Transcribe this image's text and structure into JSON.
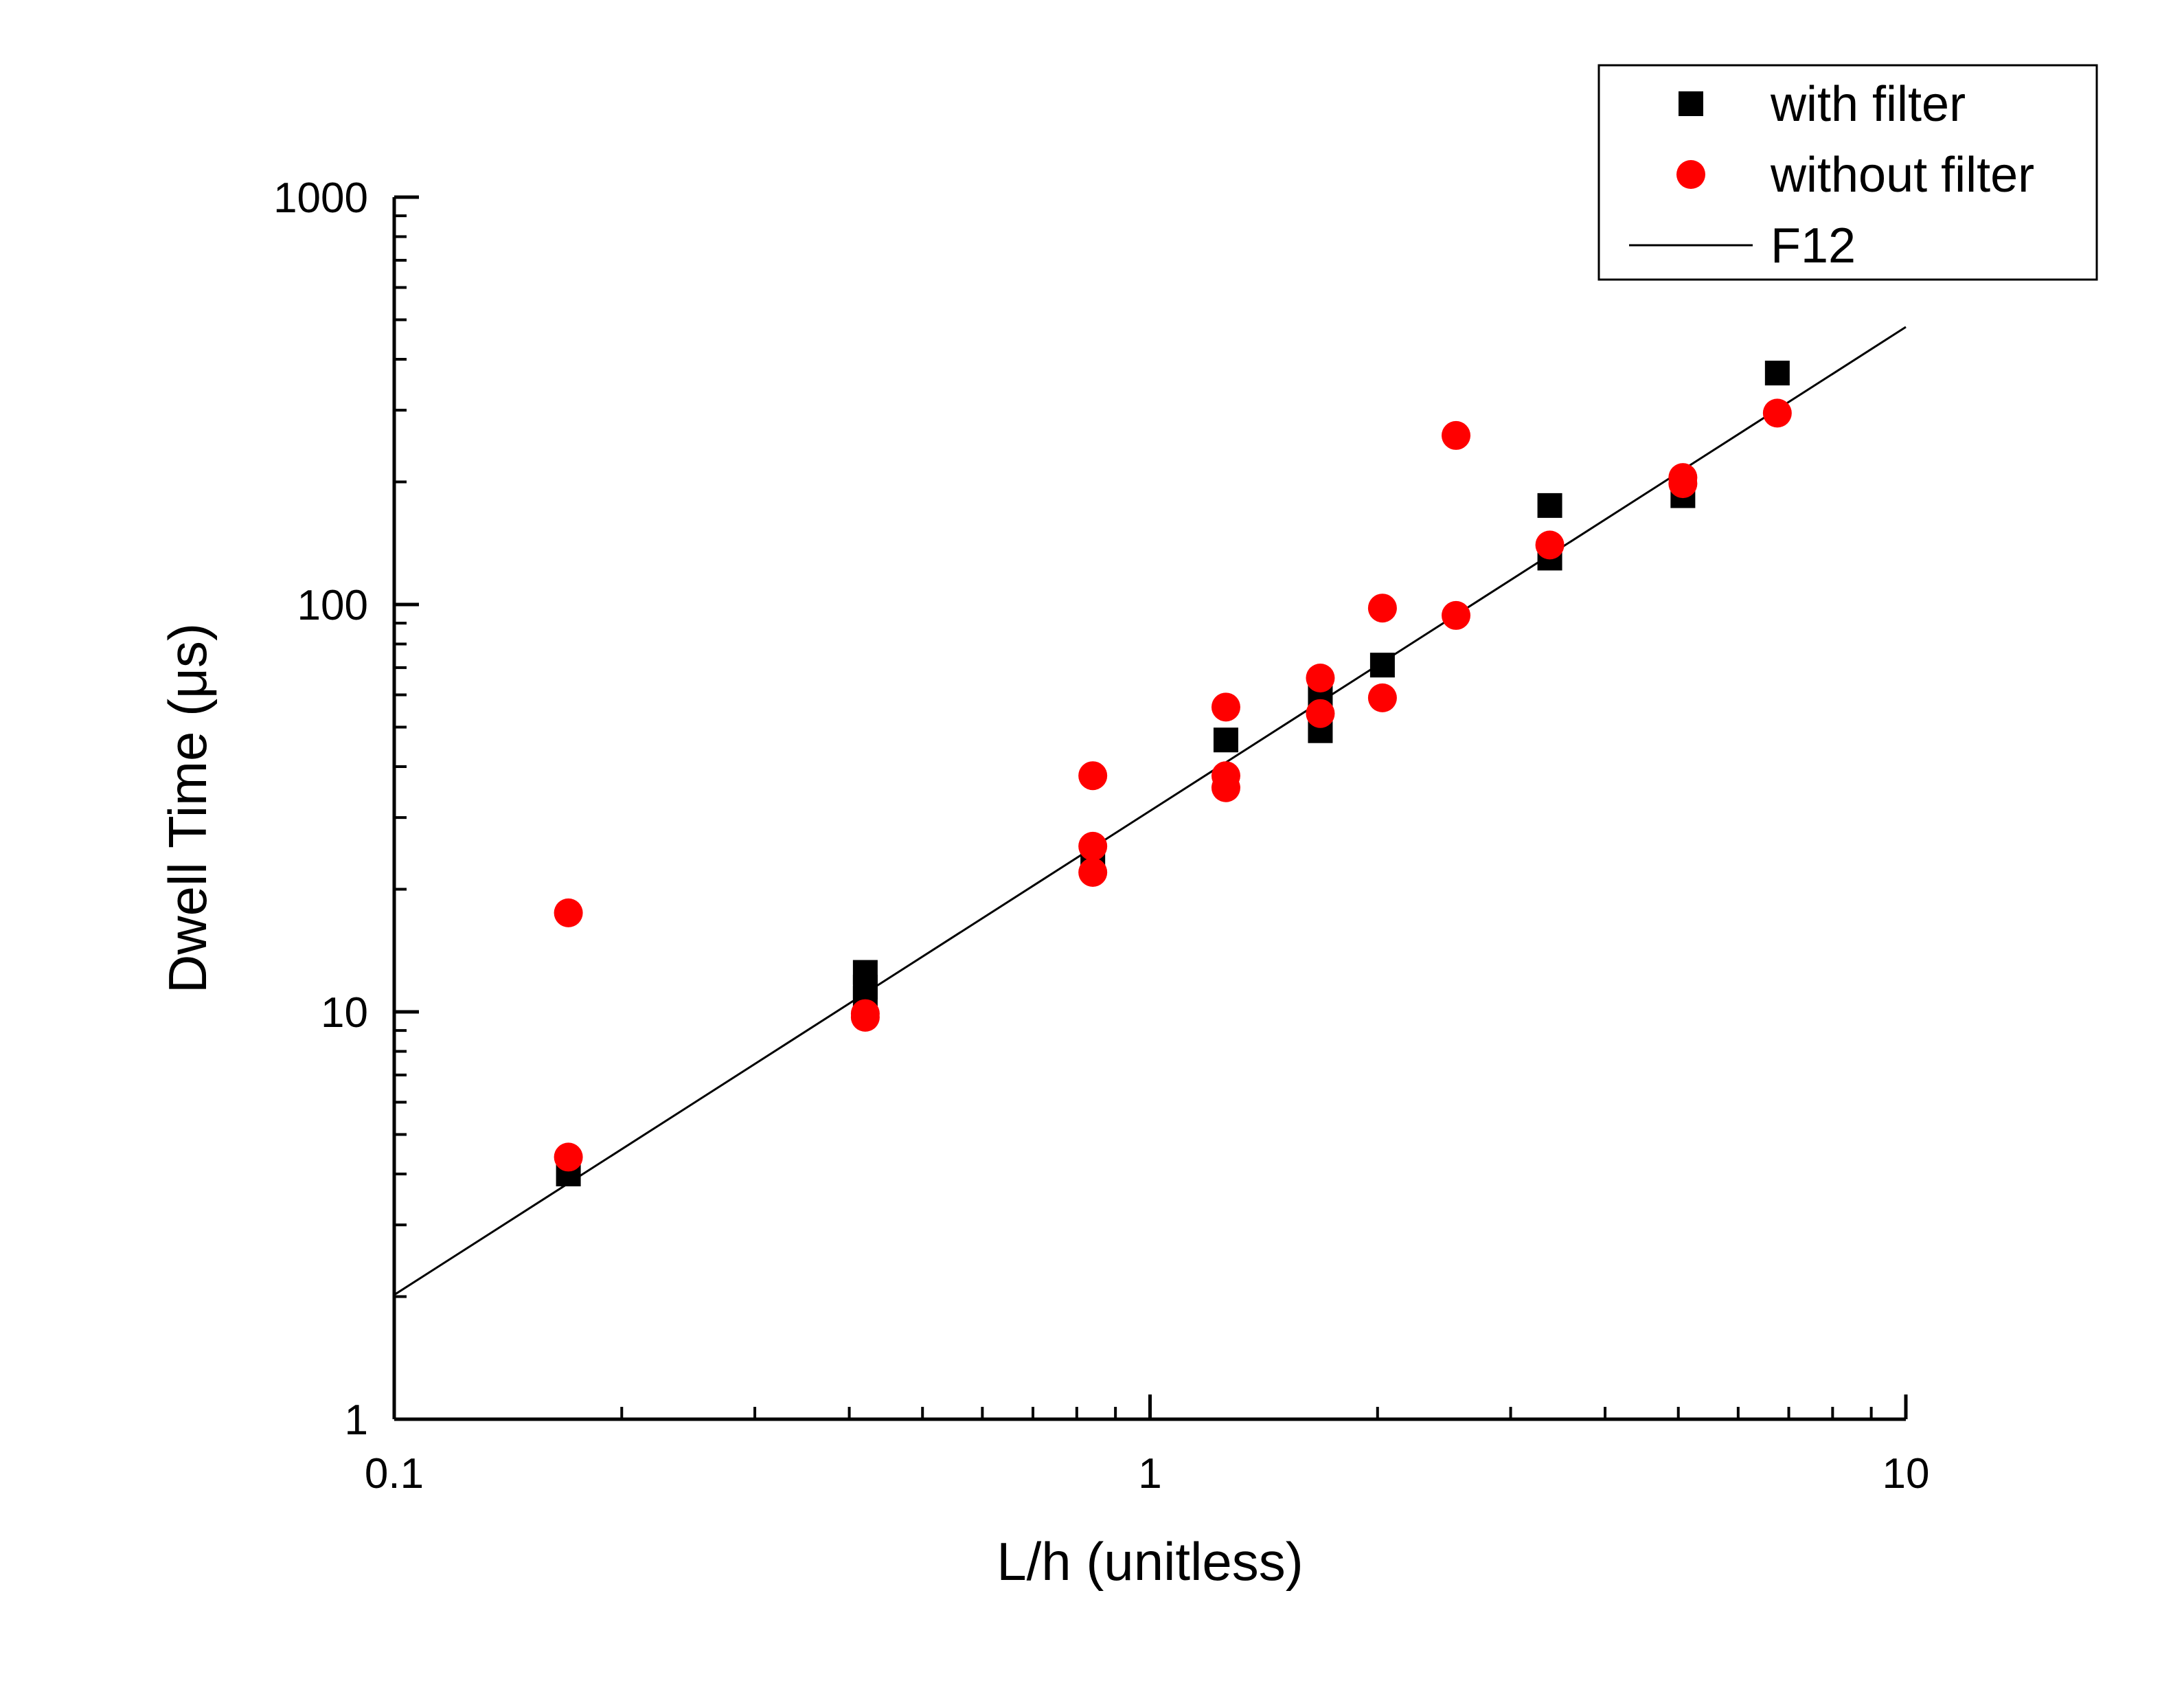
{
  "chart_data": {
    "type": "scatter",
    "xlabel": "L/h (unitless)",
    "ylabel": "Dwell Time (μs)",
    "xscale": "log",
    "yscale": "log",
    "xlim": [
      0.1,
      10
    ],
    "ylim": [
      1,
      1000
    ],
    "xticks": [
      {
        "value": 0.1,
        "label": "0.1"
      },
      {
        "value": 1,
        "label": "1"
      },
      {
        "value": 10,
        "label": "10"
      }
    ],
    "yticks": [
      {
        "value": 1,
        "label": "1"
      },
      {
        "value": 10,
        "label": "10"
      },
      {
        "value": 100,
        "label": "100"
      },
      {
        "value": 1000,
        "label": "1000"
      }
    ],
    "grid": false,
    "legend_position": "top-right",
    "series": [
      {
        "name": "with filter",
        "marker": "square",
        "color": "#000000",
        "points": [
          [
            0.17,
            4.0
          ],
          [
            0.42,
            12.5
          ],
          [
            0.42,
            11.5
          ],
          [
            0.42,
            10.8
          ],
          [
            0.84,
            24.0
          ],
          [
            1.26,
            46.5
          ],
          [
            1.68,
            49.0
          ],
          [
            1.68,
            60.0
          ],
          [
            2.03,
            71.0
          ],
          [
            3.38,
            175.0
          ],
          [
            3.38,
            130.0
          ],
          [
            5.07,
            185.0
          ],
          [
            6.76,
            370.0
          ]
        ]
      },
      {
        "name": "without filter",
        "marker": "circle",
        "color": "#ff0000",
        "points": [
          [
            0.17,
            17.5
          ],
          [
            0.17,
            4.4
          ],
          [
            0.42,
            9.7
          ],
          [
            0.42,
            9.9
          ],
          [
            0.84,
            38.0
          ],
          [
            0.84,
            25.5
          ],
          [
            0.84,
            22.0
          ],
          [
            1.26,
            56.0
          ],
          [
            1.26,
            38.0
          ],
          [
            1.26,
            35.5
          ],
          [
            1.68,
            66.0
          ],
          [
            1.68,
            54.0
          ],
          [
            2.03,
            98.0
          ],
          [
            2.03,
            59.0
          ],
          [
            2.54,
            260.0
          ],
          [
            2.54,
            94.0
          ],
          [
            3.38,
            140.0
          ],
          [
            5.07,
            205.0
          ],
          [
            5.07,
            198.0
          ],
          [
            6.76,
            295.0
          ]
        ]
      },
      {
        "name": "F12",
        "type": "line",
        "color": "#000000",
        "points": [
          [
            0.1,
            2.02
          ],
          [
            10,
            480.0
          ]
        ]
      }
    ]
  }
}
